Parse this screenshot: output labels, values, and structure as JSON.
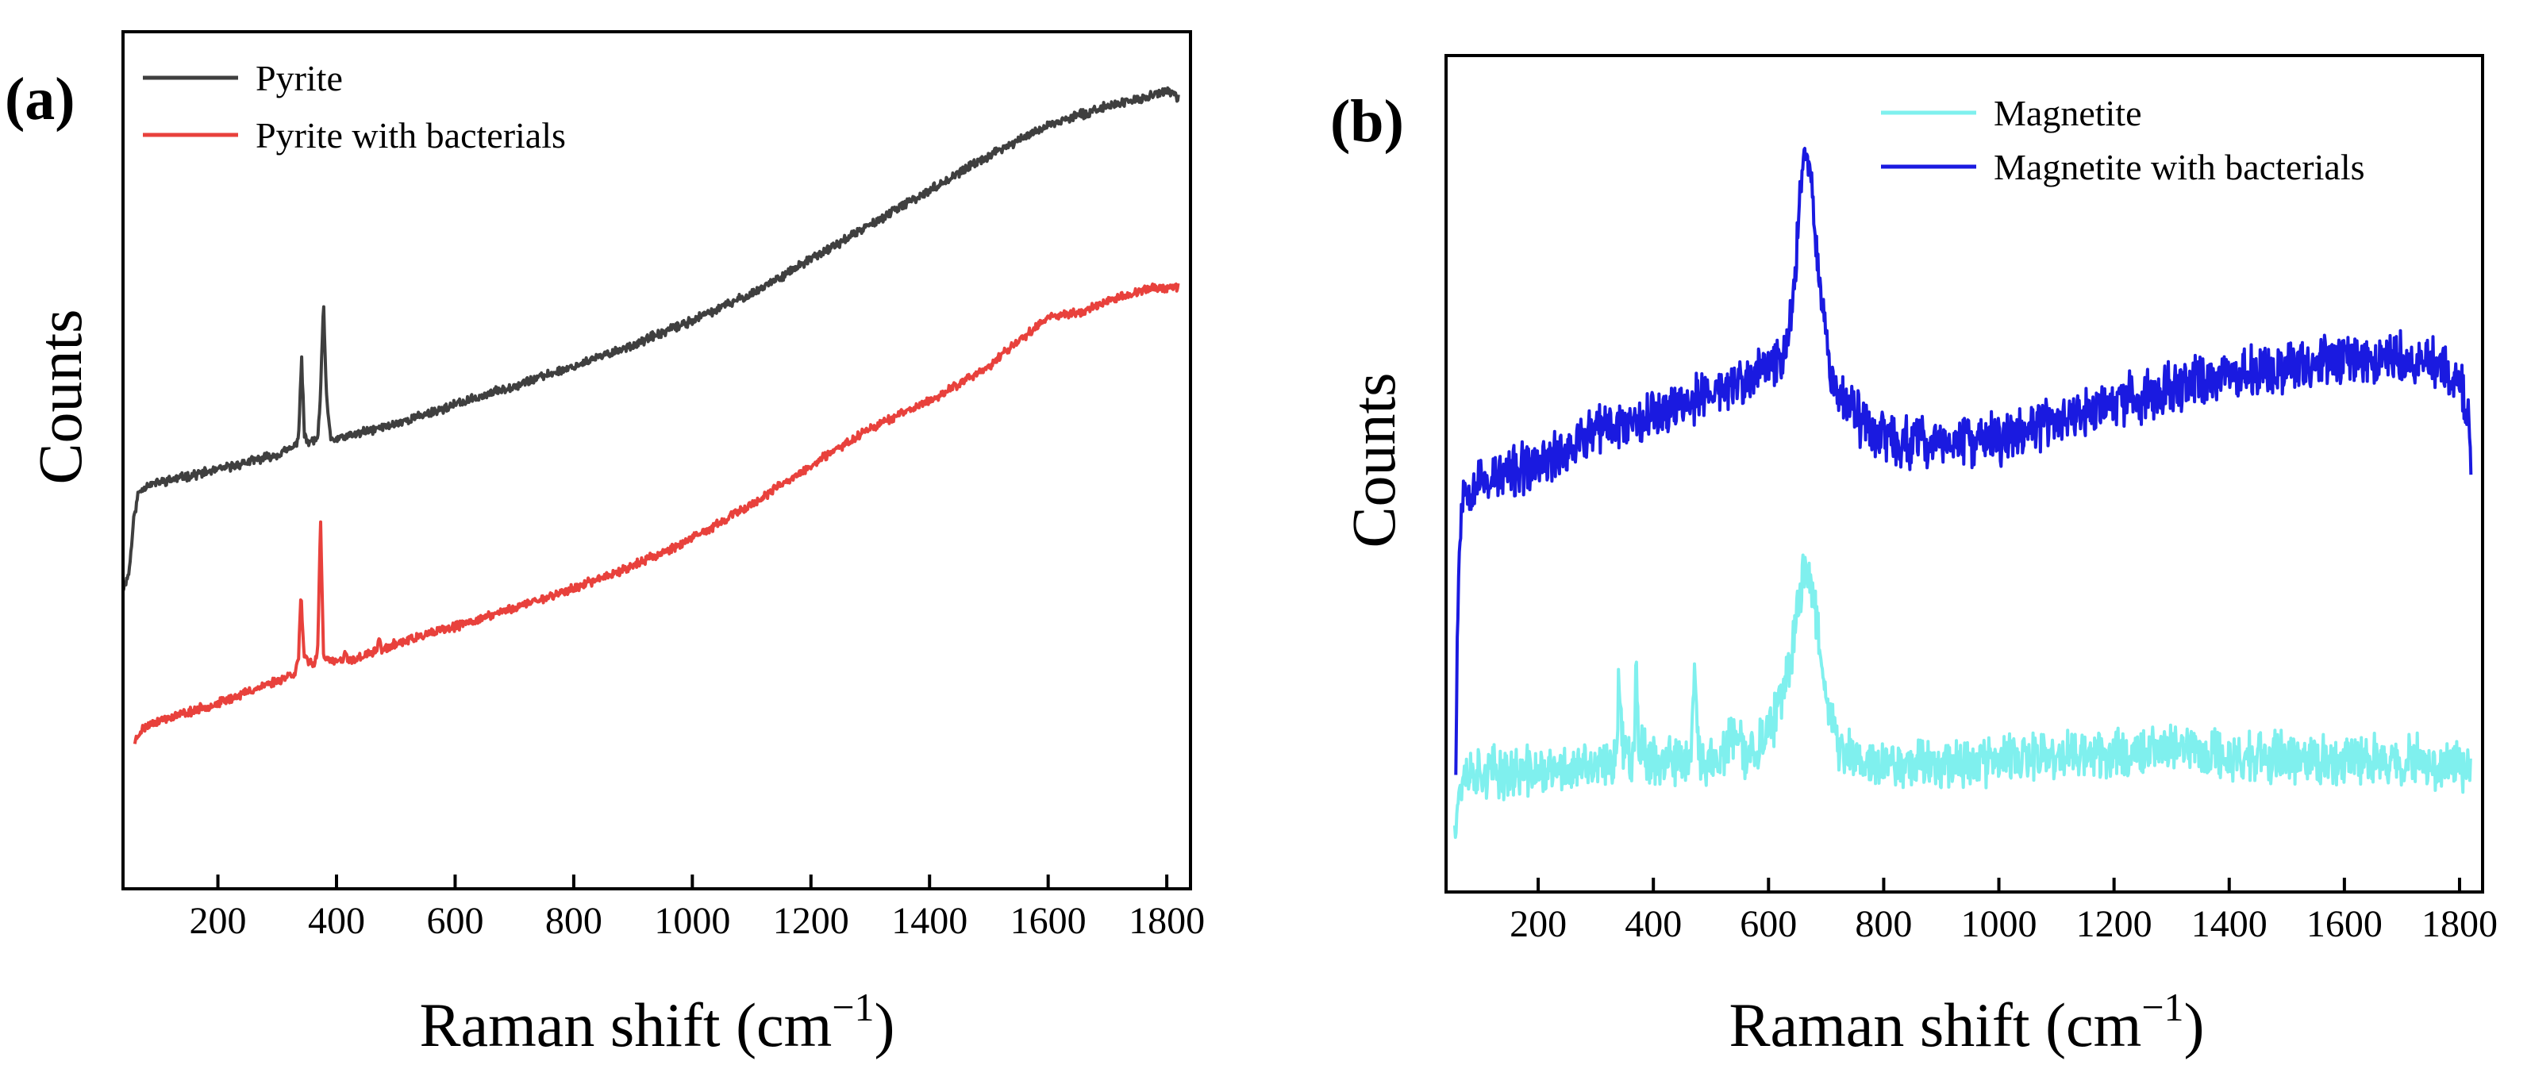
{
  "chart_data": [
    {
      "type": "line",
      "panel_label": "(a)",
      "xlabel_main": "Raman shift (cm",
      "xlabel_sup": "−1",
      "xlabel_close": ")",
      "ylabel": "Counts",
      "xlim": [
        40,
        1840
      ],
      "ylim": [
        0,
        100
      ],
      "x_ticks": [
        200,
        400,
        600,
        800,
        1000,
        1200,
        1400,
        1600,
        1800
      ],
      "x_tick_labels": [
        "200",
        "400",
        "600",
        "800",
        "1000",
        "1200",
        "1400",
        "1600",
        "1800"
      ],
      "y_ticks_shown": false,
      "legend_position": "top-left",
      "series": [
        {
          "name": "Pyrite",
          "color": "#3f3f3f",
          "noise": 0.45,
          "seed": 11,
          "points": [
            [
              40,
              33
            ],
            [
              50,
              35
            ],
            [
              58,
              42
            ],
            [
              66,
              45.5
            ],
            [
              80,
              46.5
            ],
            [
              120,
              47.2
            ],
            [
              200,
              48.5
            ],
            [
              300,
              50.5
            ],
            [
              330,
              51.5
            ],
            [
              336,
              53
            ],
            [
              341,
              63
            ],
            [
              346,
              53
            ],
            [
              352,
              52
            ],
            [
              368,
              52.5
            ],
            [
              373,
              58
            ],
            [
              378,
              70.5
            ],
            [
              383,
              58
            ],
            [
              390,
              52.5
            ],
            [
              400,
              52.5
            ],
            [
              500,
              54.5
            ],
            [
              600,
              57
            ],
            [
              700,
              59.5
            ],
            [
              800,
              62
            ],
            [
              900,
              64.8
            ],
            [
              1000,
              68
            ],
            [
              1100,
              71.5
            ],
            [
              1200,
              76
            ],
            [
              1300,
              80.5
            ],
            [
              1400,
              85
            ],
            [
              1500,
              89.5
            ],
            [
              1600,
              93.5
            ],
            [
              1700,
              96
            ],
            [
              1760,
              97
            ],
            [
              1800,
              98
            ],
            [
              1820,
              97
            ]
          ]
        },
        {
          "name": "Pyrite with bacterials",
          "color": "#e8413c",
          "noise": 0.45,
          "seed": 23,
          "points": [
            [
              60,
              13
            ],
            [
              70,
              14.5
            ],
            [
              90,
              15.5
            ],
            [
              200,
              18
            ],
            [
              300,
              21
            ],
            [
              330,
              22
            ],
            [
              336,
              24
            ],
            [
              340,
              32.5
            ],
            [
              345,
              24
            ],
            [
              360,
              23
            ],
            [
              368,
              24.5
            ],
            [
              373,
              42
            ],
            [
              378,
              24.5
            ],
            [
              385,
              23.5
            ],
            [
              410,
              23.5
            ],
            [
              415,
              24.5
            ],
            [
              420,
              23.5
            ],
            [
              468,
              24.8
            ],
            [
              472,
              27
            ],
            [
              476,
              24.8
            ],
            [
              500,
              25.8
            ],
            [
              600,
              28
            ],
            [
              700,
              30.5
            ],
            [
              800,
              33
            ],
            [
              900,
              36
            ],
            [
              1000,
              39.5
            ],
            [
              1100,
              44
            ],
            [
              1200,
              49
            ],
            [
              1300,
              54
            ],
            [
              1400,
              57.5
            ],
            [
              1500,
              62
            ],
            [
              1560,
              66
            ],
            [
              1600,
              68.5
            ],
            [
              1650,
              69
            ],
            [
              1700,
              70.5
            ],
            [
              1760,
              72
            ],
            [
              1820,
              72.5
            ]
          ]
        }
      ]
    },
    {
      "type": "line",
      "panel_label": "(b)",
      "xlabel_main": "Raman shift (cm",
      "xlabel_sup": "−1",
      "xlabel_close": ")",
      "ylabel": "Counts",
      "xlim": [
        40,
        1840
      ],
      "ylim": [
        0,
        100
      ],
      "x_ticks": [
        200,
        400,
        600,
        800,
        1000,
        1200,
        1400,
        1600,
        1800
      ],
      "x_tick_labels": [
        "200",
        "400",
        "600",
        "800",
        "1000",
        "1200",
        "1400",
        "1600",
        "1800"
      ],
      "y_ticks_shown": false,
      "legend_position": "top-right",
      "series": [
        {
          "name": "Magnetite",
          "color": "#7ff0ee",
          "noise": 2.6,
          "seed": 37,
          "points": [
            [
              55,
              3
            ],
            [
              62,
              6
            ],
            [
              70,
              9
            ],
            [
              200,
              9
            ],
            [
              300,
              9.5
            ],
            [
              330,
              10
            ],
            [
              336,
              13
            ],
            [
              340,
              22
            ],
            [
              345,
              13
            ],
            [
              360,
              11
            ],
            [
              366,
              12
            ],
            [
              370,
              25
            ],
            [
              375,
              12
            ],
            [
              420,
              10
            ],
            [
              465,
              10.5
            ],
            [
              472,
              22
            ],
            [
              478,
              10.5
            ],
            [
              520,
              11
            ],
            [
              540,
              14
            ],
            [
              560,
              11
            ],
            [
              600,
              14
            ],
            [
              630,
              20
            ],
            [
              650,
              30
            ],
            [
              665,
              37
            ],
            [
              680,
              31
            ],
            [
              700,
              20
            ],
            [
              720,
              12
            ],
            [
              780,
              10
            ],
            [
              900,
              10.5
            ],
            [
              1000,
              10.5
            ],
            [
              1100,
              11
            ],
            [
              1200,
              11.5
            ],
            [
              1300,
              12.5
            ],
            [
              1400,
              11
            ],
            [
              1500,
              11
            ],
            [
              1600,
              10.5
            ],
            [
              1700,
              10.5
            ],
            [
              1820,
              10
            ]
          ]
        },
        {
          "name": "Magnetite with bacterials",
          "color": "#1a1ae0",
          "noise": 2.6,
          "seed": 53,
          "points": [
            [
              57,
              11
            ],
            [
              60,
              30
            ],
            [
              65,
              42
            ],
            [
              70,
              46
            ],
            [
              100,
              47
            ],
            [
              200,
              49
            ],
            [
              300,
              53.5
            ],
            [
              400,
              56
            ],
            [
              500,
              58.5
            ],
            [
              560,
              60
            ],
            [
              600,
              62
            ],
            [
              630,
              64
            ],
            [
              645,
              72
            ],
            [
              655,
              86
            ],
            [
              665,
              92
            ],
            [
              675,
              86
            ],
            [
              690,
              72
            ],
            [
              710,
              60
            ],
            [
              760,
              55
            ],
            [
              820,
              52
            ],
            [
              900,
              52
            ],
            [
              1000,
              52.5
            ],
            [
              1100,
              55
            ],
            [
              1200,
              57
            ],
            [
              1300,
              59.5
            ],
            [
              1400,
              61
            ],
            [
              1500,
              62
            ],
            [
              1600,
              63
            ],
            [
              1700,
              63
            ],
            [
              1760,
              62.5
            ],
            [
              1800,
              60
            ],
            [
              1815,
              56
            ],
            [
              1820,
              50
            ]
          ]
        }
      ]
    }
  ]
}
